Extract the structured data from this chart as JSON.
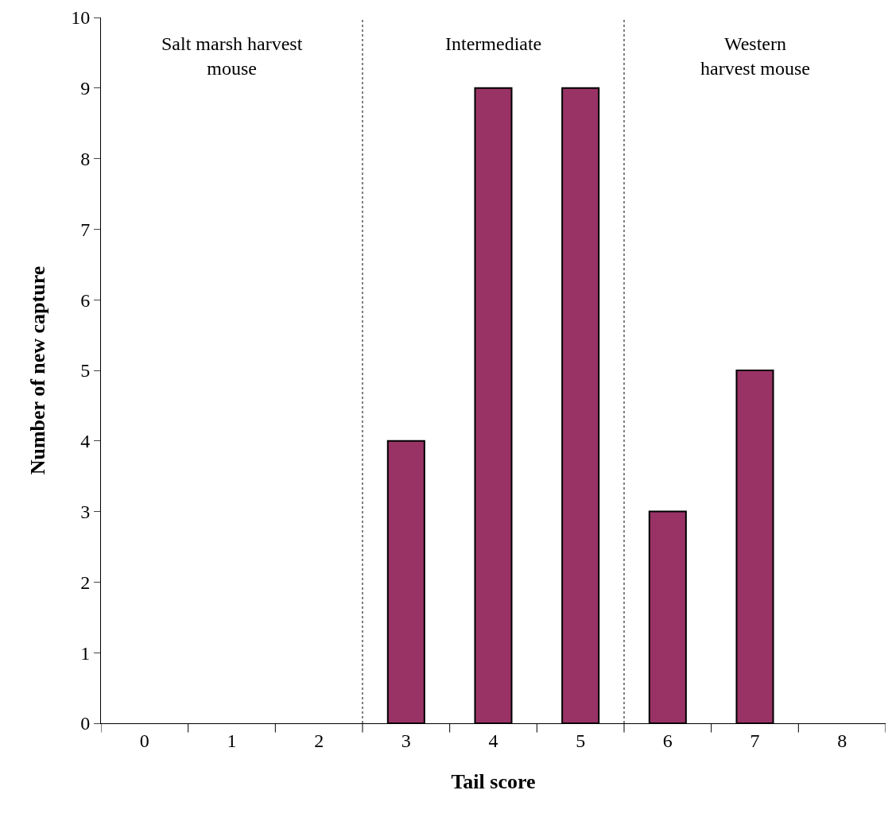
{
  "chart_data": {
    "type": "bar",
    "xlabel": "Tail score",
    "ylabel": "Number of new capture",
    "categories": [
      "0",
      "1",
      "2",
      "3",
      "4",
      "5",
      "6",
      "7",
      "8"
    ],
    "values": [
      0,
      0,
      0,
      4,
      9,
      9,
      3,
      5,
      0
    ],
    "color": "#993366",
    "ylim": [
      0,
      10
    ],
    "yticks": [
      0,
      1,
      2,
      3,
      4,
      5,
      6,
      7,
      8,
      9,
      10
    ],
    "annotations": [
      "Salt marsh harvest\nmouse",
      "Intermediate",
      "Western\nharvest mouse"
    ]
  }
}
